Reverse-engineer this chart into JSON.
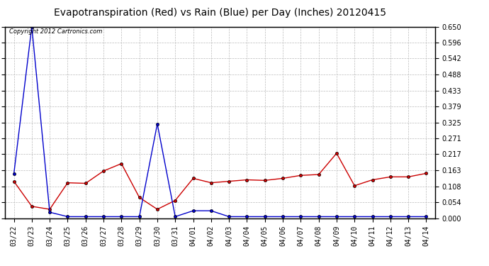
{
  "title": "Evapotranspiration (Red) vs Rain (Blue) per Day (Inches) 20120415",
  "copyright": "Copyright 2012 Cartronics.com",
  "x_labels": [
    "03/22",
    "03/23",
    "03/24",
    "03/25",
    "03/26",
    "03/27",
    "03/28",
    "03/29",
    "03/30",
    "03/31",
    "04/01",
    "04/02",
    "04/03",
    "04/04",
    "04/05",
    "04/06",
    "04/07",
    "04/08",
    "04/09",
    "04/10",
    "04/11",
    "04/12",
    "04/13",
    "04/14"
  ],
  "red_data": [
    0.125,
    0.04,
    0.03,
    0.12,
    0.118,
    0.16,
    0.185,
    0.07,
    0.03,
    0.06,
    0.135,
    0.12,
    0.125,
    0.13,
    0.128,
    0.135,
    0.145,
    0.148,
    0.22,
    0.11,
    0.13,
    0.14,
    0.14,
    0.152
  ],
  "blue_data": [
    0.15,
    0.65,
    0.02,
    0.005,
    0.005,
    0.005,
    0.005,
    0.005,
    0.32,
    0.005,
    0.025,
    0.025,
    0.005,
    0.005,
    0.005,
    0.005,
    0.005,
    0.005,
    0.005,
    0.005,
    0.005,
    0.005,
    0.005,
    0.005
  ],
  "ylim": [
    0.0,
    0.65
  ],
  "yticks": [
    0.0,
    0.054,
    0.108,
    0.163,
    0.217,
    0.271,
    0.325,
    0.379,
    0.433,
    0.488,
    0.542,
    0.596,
    0.65
  ],
  "red_color": "#cc0000",
  "blue_color": "#0000cc",
  "bg_color": "#ffffff",
  "grid_color": "#bbbbbb",
  "title_fontsize": 10,
  "tick_fontsize": 7,
  "copyright_fontsize": 6
}
